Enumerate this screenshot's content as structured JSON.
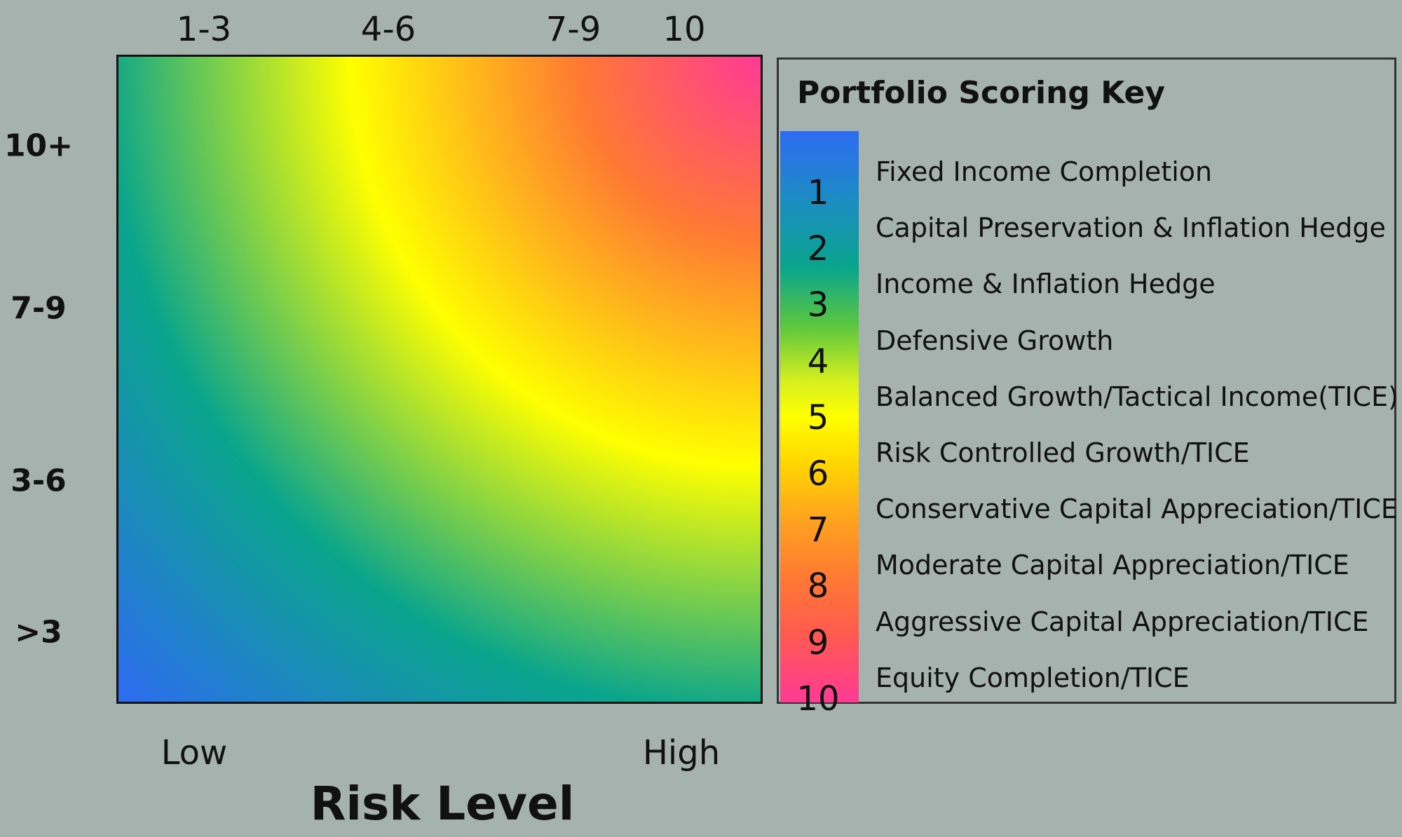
{
  "chart_data": {
    "type": "heatmap",
    "title": "",
    "xlabel": "Risk Level",
    "x_top_ticks": [
      "1-3",
      "4-6",
      "7-9",
      "10"
    ],
    "x_end_labels": [
      "Low",
      "High"
    ],
    "y_ticks": [
      "10+",
      "7-9",
      "3-6",
      ">3"
    ],
    "colorscale": [
      "#2e6bf2",
      "#0aa58c",
      "#ffff00",
      "#ff7a33",
      "#ff3a95"
    ],
    "legend": {
      "title": "Portfolio Scoring Key",
      "placement": "right",
      "entries": [
        {
          "score": "1",
          "label": "Fixed Income Completion"
        },
        {
          "score": "2",
          "label": "Capital Preservation & Inflation Hedge"
        },
        {
          "score": "3",
          "label": "Income & Inflation Hedge"
        },
        {
          "score": "4",
          "label": "Defensive Growth"
        },
        {
          "score": "5",
          "label": "Balanced Growth/Tactical Income(TICE)"
        },
        {
          "score": "6",
          "label": "Risk Controlled Growth/TICE"
        },
        {
          "score": "7",
          "label": "Conservative Capital Appreciation/TICE"
        },
        {
          "score": "8",
          "label": "Moderate Capital Appreciation/TICE"
        },
        {
          "score": "9",
          "label": "Aggressive Capital Appreciation/TICE"
        },
        {
          "score": "10",
          "label": "Equity Completion/TICE"
        }
      ]
    }
  }
}
